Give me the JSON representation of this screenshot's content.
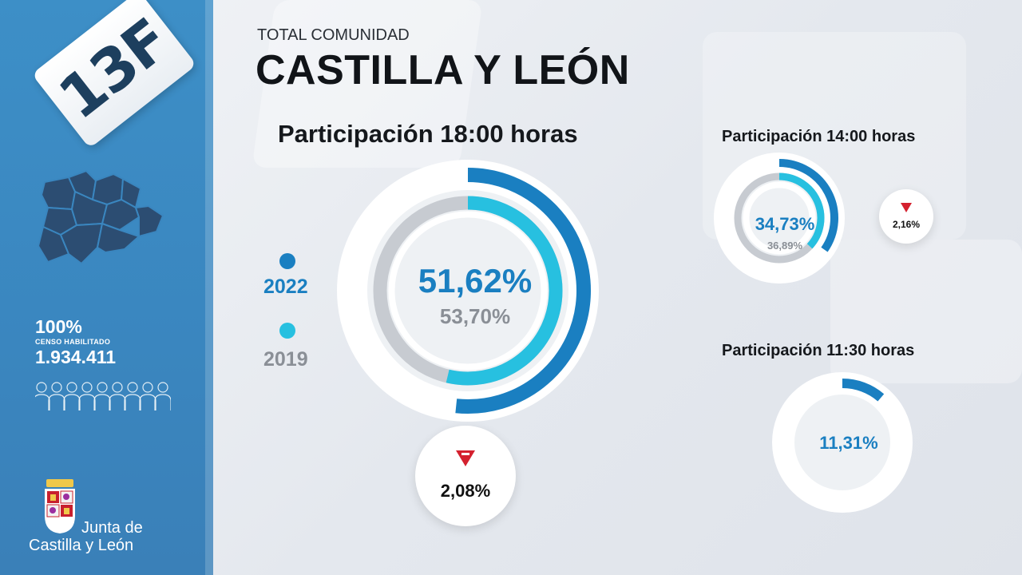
{
  "header": {
    "subtitle": "TOTAL COMUNIDAD",
    "title": "CASTILLA Y LEÓN"
  },
  "sidebar": {
    "badge": "13F",
    "censo_pct": "100%",
    "censo_label": "CENSO HABILITADO",
    "censo_num": "1.934.411",
    "logo_line1": "Junta de",
    "logo_line2": "Castilla y León"
  },
  "colors": {
    "series_2022": "#1a7fc1",
    "series_2019": "#27c0e0",
    "track": "#c7cbd1",
    "down": "#d4212f",
    "sidebar": "#3d8fc7"
  },
  "legend": {
    "y2022": "2022",
    "y2019": "2019"
  },
  "chart_data": [
    {
      "type": "donut",
      "title": "Participación 18:00 horas",
      "series": [
        {
          "name": "2022",
          "value": 51.62,
          "label": "51,62%"
        },
        {
          "name": "2019",
          "value": 53.7,
          "label": "53,70%"
        }
      ],
      "difference": {
        "value": -2.08,
        "label": "2,08%",
        "direction": "down"
      },
      "max": 100
    },
    {
      "type": "donut",
      "title": "Participación 14:00 horas",
      "series": [
        {
          "name": "2022",
          "value": 34.73,
          "label": "34,73%"
        },
        {
          "name": "2019",
          "value": 36.89,
          "label": "36,89%"
        }
      ],
      "difference": {
        "value": -2.16,
        "label": "2,16%",
        "direction": "down"
      },
      "max": 100
    },
    {
      "type": "donut",
      "title": "Participación 11:30 horas",
      "series": [
        {
          "name": "2022",
          "value": 11.31,
          "label": "11,31%"
        }
      ],
      "max": 100
    }
  ]
}
